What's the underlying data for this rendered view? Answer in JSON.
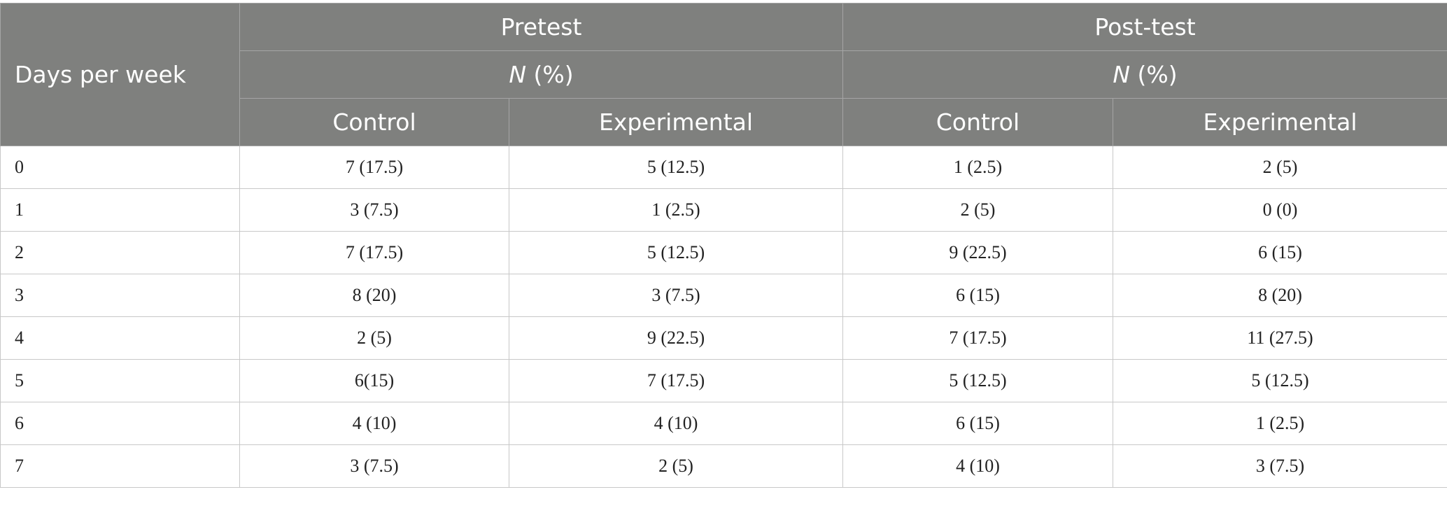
{
  "table": {
    "corner": "Days per week",
    "groups": [
      {
        "title": "Pretest",
        "measure": {
          "symbol": "N",
          "unit": "(%)"
        },
        "columns": [
          "Control",
          "Experimental"
        ]
      },
      {
        "title": "Post-test",
        "measure": {
          "symbol": "N",
          "unit": "(%)"
        },
        "columns": [
          "Control",
          "Experimental"
        ]
      }
    ],
    "rows": [
      [
        "0",
        "7 (17.5)",
        "5 (12.5)",
        "1 (2.5)",
        "2 (5)"
      ],
      [
        "1",
        "3 (7.5)",
        "1 (2.5)",
        "2 (5)",
        "0 (0)"
      ],
      [
        "2",
        "7 (17.5)",
        "5 (12.5)",
        "9 (22.5)",
        "6 (15)"
      ],
      [
        "3",
        "8 (20)",
        "3 (7.5)",
        "6 (15)",
        "8 (20)"
      ],
      [
        "4",
        "2 (5)",
        "9 (22.5)",
        "7 (17.5)",
        "11 (27.5)"
      ],
      [
        "5",
        "6(15)",
        "7 (17.5)",
        "5 (12.5)",
        "5 (12.5)"
      ],
      [
        "6",
        "4 (10)",
        "4 (10)",
        "6 (15)",
        "1 (2.5)"
      ],
      [
        "7",
        "3 (7.5)",
        "2 (5)",
        "4 (10)",
        "3 (7.5)"
      ]
    ]
  }
}
